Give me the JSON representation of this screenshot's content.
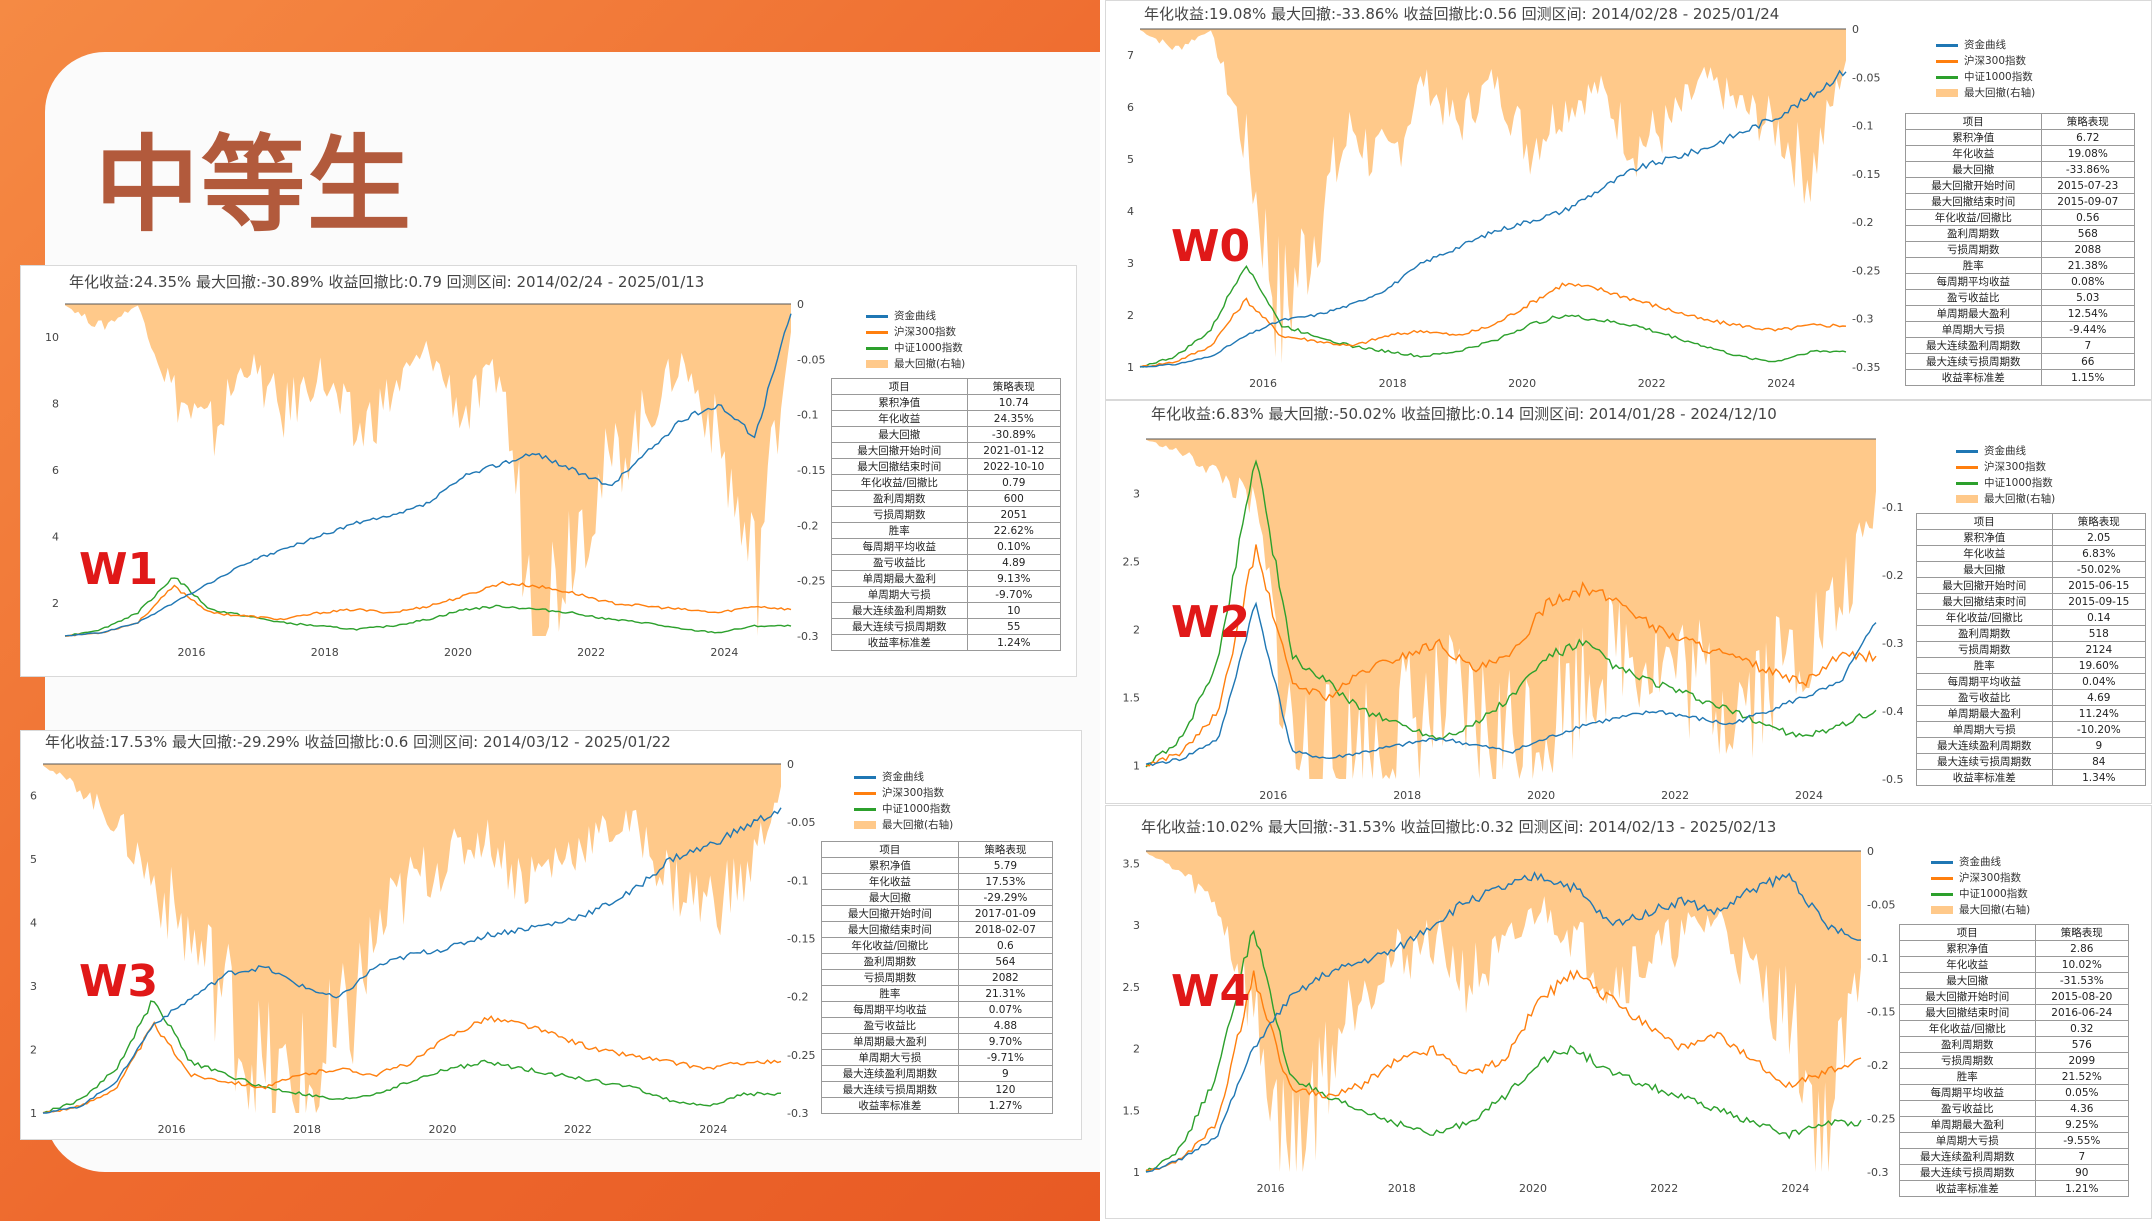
{
  "slide": {
    "title": "中等生"
  },
  "colors": {
    "strategy": "#1f77b4",
    "hs300": "#ff7f0e",
    "csi1000": "#2ca02c",
    "drawdown": "#ffc98a"
  },
  "legend": [
    "资金曲线",
    "沪深300指数",
    "中证1000指数",
    "最大回撤(右轴)"
  ],
  "table_headers": [
    "项目",
    "策略表现"
  ],
  "metric_names": [
    "累积净值",
    "年化收益",
    "最大回撤",
    "最大回撤开始时间",
    "最大回撤结束时间",
    "年化收益/回撤比",
    "盈利周期数",
    "亏损周期数",
    "胜率",
    "每周期平均收益",
    "盈亏收益比",
    "单周期最大盈利",
    "单周期大亏损",
    "最大连续盈利周期数",
    "最大连续亏损周期数",
    "收益率标准差"
  ],
  "chart_data": [
    {
      "label": "W0",
      "type": "line",
      "header": "年化收益:19.08%  最大回撤:-33.86%  收益回撤比:0.56  回测区间: 2014/02/28 - 2025/01/24",
      "ylim": [
        1,
        7.5
      ],
      "yticks": [
        "1",
        "2",
        "3",
        "4",
        "5",
        "6",
        "7"
      ],
      "y2lim": [
        -0.35,
        0
      ],
      "y2ticks": [
        "0",
        "-0.05",
        "-0.1",
        "-0.15",
        "-0.2",
        "-0.25",
        "-0.3",
        "-0.35"
      ],
      "xticks": [
        "2016",
        "2018",
        "2020",
        "2022",
        "2024"
      ],
      "series": [
        {
          "name": "资金曲线",
          "values": [
            1,
            1.05,
            1.2,
            1.6,
            1.9,
            2.0,
            2.2,
            2.5,
            3.0,
            3.3,
            3.6,
            3.8,
            4.0,
            4.4,
            4.8,
            5.0,
            5.2,
            5.5,
            5.8,
            6.2,
            6.72
          ]
        },
        {
          "name": "沪深300指数",
          "values": [
            1,
            1.1,
            1.4,
            2.3,
            1.6,
            1.5,
            1.4,
            1.6,
            1.7,
            1.6,
            1.8,
            2.2,
            2.6,
            2.5,
            2.3,
            2.1,
            1.9,
            1.8,
            1.7,
            1.8,
            1.8
          ]
        },
        {
          "name": "中证1000指数",
          "values": [
            1,
            1.2,
            1.7,
            3.0,
            1.8,
            1.6,
            1.4,
            1.3,
            1.2,
            1.3,
            1.5,
            1.8,
            2.0,
            1.9,
            1.8,
            1.6,
            1.4,
            1.2,
            1.1,
            1.3,
            1.3
          ]
        },
        {
          "name": "最大回撤(右轴)",
          "values": [
            0,
            -0.02,
            0,
            -0.12,
            -0.3,
            -0.2,
            -0.1,
            -0.15,
            -0.05,
            -0.1,
            -0.05,
            -0.12,
            -0.08,
            -0.06,
            -0.12,
            -0.1,
            -0.05,
            -0.08,
            -0.1,
            -0.15,
            -0.03
          ]
        }
      ],
      "stats": [
        "6.72",
        "19.08%",
        "-33.86%",
        "2015-07-23",
        "2015-09-07",
        "0.56",
        "568",
        "2088",
        "21.38%",
        "0.08%",
        "5.03",
        "12.54%",
        "-9.44%",
        "7",
        "66",
        "1.15%"
      ]
    },
    {
      "label": "W1",
      "type": "line",
      "header": "年化收益:24.35%  最大回撤:-30.89%  收益回撤比:0.79  回测区间: 2014/02/24 - 2025/01/13",
      "ylim": [
        1,
        11
      ],
      "yticks": [
        "2",
        "4",
        "6",
        "8",
        "10"
      ],
      "y2lim": [
        -0.3,
        0
      ],
      "y2ticks": [
        "0",
        "-0.05",
        "-0.1",
        "-0.15",
        "-0.2",
        "-0.25",
        "-0.3"
      ],
      "xticks": [
        "2016",
        "2018",
        "2020",
        "2022",
        "2024"
      ],
      "series": [
        {
          "name": "资金曲线",
          "values": [
            1,
            1.1,
            1.4,
            2.0,
            2.6,
            3.2,
            3.6,
            4.0,
            4.4,
            4.6,
            5.0,
            5.8,
            6.2,
            6.5,
            6.0,
            5.5,
            6.5,
            7.5,
            8.0,
            7.0,
            10.74
          ]
        },
        {
          "name": "沪深300指数",
          "values": [
            1,
            1.1,
            1.4,
            2.5,
            1.7,
            1.6,
            1.5,
            1.7,
            1.8,
            1.7,
            1.9,
            2.2,
            2.6,
            2.5,
            2.3,
            2.0,
            1.9,
            1.8,
            1.7,
            1.9,
            1.8
          ]
        },
        {
          "name": "中证1000指数",
          "values": [
            1,
            1.2,
            1.7,
            2.8,
            1.8,
            1.6,
            1.4,
            1.3,
            1.2,
            1.3,
            1.5,
            1.8,
            1.9,
            1.8,
            1.7,
            1.5,
            1.4,
            1.2,
            1.1,
            1.3,
            1.3
          ]
        },
        {
          "name": "最大回撤(右轴)",
          "values": [
            0,
            -0.02,
            0,
            -0.08,
            -0.12,
            -0.05,
            -0.1,
            -0.06,
            -0.12,
            -0.08,
            -0.04,
            -0.1,
            -0.06,
            -0.3,
            -0.2,
            -0.15,
            -0.1,
            -0.05,
            -0.12,
            -0.25,
            -0.02
          ]
        }
      ],
      "stats": [
        "10.74",
        "24.35%",
        "-30.89%",
        "2021-01-12",
        "2022-10-10",
        "0.79",
        "600",
        "2051",
        "22.62%",
        "0.10%",
        "4.89",
        "9.13%",
        "-9.70%",
        "10",
        "55",
        "1.24%"
      ]
    },
    {
      "label": "W2",
      "type": "line",
      "header": "年化收益:6.83%  最大回撤:-50.02%  收益回撤比:0.14  回测区间: 2014/01/28 - 2024/12/10",
      "ylim": [
        0.9,
        3.4
      ],
      "yticks": [
        "1",
        "1.5",
        "2",
        "2.5",
        "3"
      ],
      "y2lim": [
        -0.5,
        0
      ],
      "y2ticks": [
        "-0.1",
        "-0.2",
        "-0.3",
        "-0.4",
        "-0.5"
      ],
      "xticks": [
        "2016",
        "2018",
        "2020",
        "2022",
        "2024"
      ],
      "series": [
        {
          "name": "资金曲线",
          "values": [
            1,
            1.05,
            1.2,
            2.2,
            1.1,
            1.05,
            1.1,
            1.15,
            1.2,
            1.15,
            1.1,
            1.2,
            1.3,
            1.35,
            1.4,
            1.35,
            1.3,
            1.4,
            1.5,
            1.6,
            2.05
          ]
        },
        {
          "name": "沪深300指数",
          "values": [
            1,
            1.1,
            1.4,
            2.6,
            1.6,
            1.5,
            1.7,
            1.8,
            1.9,
            1.7,
            1.8,
            2.2,
            2.3,
            2.2,
            2.0,
            1.9,
            1.8,
            1.7,
            1.6,
            1.8,
            1.8
          ]
        },
        {
          "name": "中证1000指数",
          "values": [
            1,
            1.2,
            1.8,
            3.3,
            1.8,
            1.6,
            1.4,
            1.3,
            1.2,
            1.3,
            1.5,
            1.8,
            1.9,
            1.7,
            1.6,
            1.5,
            1.4,
            1.3,
            1.2,
            1.3,
            1.4
          ]
        },
        {
          "name": "最大回撤(右轴)",
          "values": [
            0,
            -0.02,
            -0.05,
            -0.1,
            -0.45,
            -0.5,
            -0.45,
            -0.42,
            -0.4,
            -0.42,
            -0.44,
            -0.4,
            -0.35,
            -0.3,
            -0.32,
            -0.35,
            -0.38,
            -0.35,
            -0.3,
            -0.25,
            -0.1
          ]
        }
      ],
      "stats": [
        "2.05",
        "6.83%",
        "-50.02%",
        "2015-06-15",
        "2015-09-15",
        "0.14",
        "518",
        "2124",
        "19.60%",
        "0.04%",
        "4.69",
        "11.24%",
        "-10.20%",
        "9",
        "84",
        "1.34%"
      ]
    },
    {
      "label": "W3",
      "type": "line",
      "header": "年化收益:17.53%  最大回撤:-29.29%  收益回撤比:0.6  回测区间: 2014/03/12 - 2025/01/22",
      "ylim": [
        1,
        6.5
      ],
      "yticks": [
        "1",
        "2",
        "3",
        "4",
        "5",
        "6"
      ],
      "y2lim": [
        -0.3,
        0
      ],
      "y2ticks": [
        "0",
        "-0.05",
        "-0.1",
        "-0.15",
        "-0.2",
        "-0.25",
        "-0.3"
      ],
      "xticks": [
        "2016",
        "2018",
        "2020",
        "2022",
        "2024"
      ],
      "series": [
        {
          "name": "资金曲线",
          "values": [
            1,
            1.1,
            1.5,
            2.4,
            2.8,
            3.2,
            3.3,
            3.0,
            2.8,
            3.3,
            3.5,
            3.6,
            3.8,
            3.9,
            4.0,
            4.2,
            4.5,
            5.0,
            5.2,
            5.5,
            5.79
          ]
        },
        {
          "name": "沪深300指数",
          "values": [
            1,
            1.1,
            1.4,
            2.4,
            1.6,
            1.5,
            1.4,
            1.6,
            1.7,
            1.6,
            1.8,
            2.2,
            2.5,
            2.4,
            2.2,
            2.0,
            1.9,
            1.8,
            1.7,
            1.8,
            1.8
          ]
        },
        {
          "name": "中证1000指数",
          "values": [
            1,
            1.2,
            1.7,
            2.8,
            1.8,
            1.6,
            1.4,
            1.3,
            1.2,
            1.3,
            1.5,
            1.7,
            1.8,
            1.7,
            1.6,
            1.5,
            1.4,
            1.2,
            1.1,
            1.3,
            1.3
          ]
        },
        {
          "name": "最大回撤(右轴)",
          "values": [
            0,
            -0.02,
            -0.05,
            -0.1,
            -0.15,
            -0.2,
            -0.28,
            -0.29,
            -0.25,
            -0.15,
            -0.1,
            -0.08,
            -0.06,
            -0.1,
            -0.08,
            -0.06,
            -0.05,
            -0.1,
            -0.12,
            -0.1,
            -0.02
          ]
        }
      ],
      "stats": [
        "5.79",
        "17.53%",
        "-29.29%",
        "2017-01-09",
        "2018-02-07",
        "0.6",
        "564",
        "2082",
        "21.31%",
        "0.07%",
        "4.88",
        "9.70%",
        "-9.71%",
        "9",
        "120",
        "1.27%"
      ]
    },
    {
      "label": "W4",
      "type": "line",
      "header": "年化收益:10.02%  最大回撤:-31.53%  收益回撤比:0.32  回测区间: 2014/02/13 - 2025/02/13",
      "ylim": [
        1,
        3.6
      ],
      "yticks": [
        "1",
        "1.5",
        "2",
        "2.5",
        "3",
        "3.5"
      ],
      "y2lim": [
        -0.3,
        0
      ],
      "y2ticks": [
        "0",
        "-0.05",
        "-0.1",
        "-0.15",
        "-0.2",
        "-0.25",
        "-0.3"
      ],
      "xticks": [
        "2016",
        "2018",
        "2020",
        "2022",
        "2024"
      ],
      "series": [
        {
          "name": "资金曲线",
          "values": [
            1,
            1.1,
            1.3,
            2.0,
            2.4,
            2.6,
            2.7,
            2.8,
            3.0,
            3.2,
            3.3,
            3.4,
            3.3,
            3.0,
            3.1,
            3.2,
            3.1,
            3.3,
            3.4,
            3.0,
            2.86
          ]
        },
        {
          "name": "沪深300指数",
          "values": [
            1,
            1.1,
            1.4,
            2.6,
            1.7,
            1.6,
            1.7,
            1.9,
            2.0,
            1.8,
            1.9,
            2.4,
            2.6,
            2.4,
            2.2,
            2.0,
            2.1,
            1.9,
            1.7,
            1.8,
            1.9
          ]
        },
        {
          "name": "中证1000指数",
          "values": [
            1,
            1.2,
            1.8,
            3.0,
            1.8,
            1.6,
            1.5,
            1.4,
            1.3,
            1.4,
            1.6,
            1.9,
            2.0,
            1.8,
            1.7,
            1.6,
            1.5,
            1.4,
            1.3,
            1.4,
            1.4
          ]
        },
        {
          "name": "最大回撤(右轴)",
          "values": [
            0,
            -0.02,
            -0.05,
            -0.15,
            -0.3,
            -0.2,
            -0.12,
            -0.1,
            -0.08,
            -0.12,
            -0.1,
            -0.05,
            -0.08,
            -0.12,
            -0.1,
            -0.08,
            -0.06,
            -0.12,
            -0.15,
            -0.28,
            -0.1
          ]
        }
      ],
      "stats": [
        "2.86",
        "10.02%",
        "-31.53%",
        "2015-08-20",
        "2016-06-24",
        "0.32",
        "576",
        "2099",
        "21.52%",
        "0.05%",
        "4.36",
        "9.25%",
        "-9.55%",
        "7",
        "90",
        "1.21%"
      ]
    }
  ]
}
